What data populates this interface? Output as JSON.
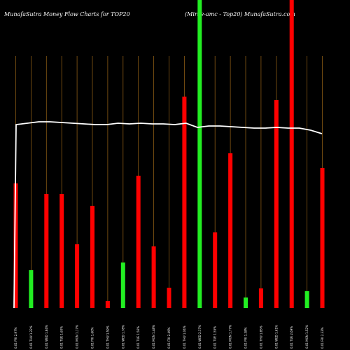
{
  "chart_data": {
    "type": "bar",
    "title_left": "MunafaSutra  Money Flow  Charts for TOP20",
    "title_right": "(Mirae-amc -   Top20) MunafaSutra.com",
    "colors": {
      "background": "#000000",
      "up": "#22ee22",
      "down": "#ff0000",
      "guide": "#8a5a14",
      "line": "#ffffff"
    },
    "ylim": [
      0,
      440
    ],
    "categories": [
      "0.01 FRI 2.97%",
      "0.01 THU 1.22%",
      "0.01 WED 1.84%",
      "0.01 TUE 1.60%",
      "0.01 MON 1.17%",
      "0.01 FRI 1.60%",
      "0.01 THU 1.59%",
      "0.01 WED 1.78%",
      "0.01 TUE 1.56%",
      "0.01 MON 1.48%",
      "0.01 FRI 2.49%",
      "0.01 THU 1.04%",
      "0.01 WED 2.37%",
      "0.01 TUE 1.55%",
      "0.01 MON 1.77%",
      "0.01 FRI 1.38%",
      "0.01 THU 1.85%",
      "0.01 WED 1.61%",
      "0.01 TUE 2.69%",
      "0.01 MON 1.52%",
      "0.01 FRI 2.33%"
    ],
    "values": [
      178,
      54,
      163,
      163,
      91,
      146,
      10,
      65,
      189,
      88,
      29,
      302,
      440,
      108,
      221,
      15,
      28,
      297,
      440,
      24,
      200
    ],
    "directions": [
      "down",
      "up",
      "down",
      "down",
      "down",
      "down",
      "down",
      "up",
      "down",
      "down",
      "down",
      "down",
      "up",
      "down",
      "down",
      "up",
      "down",
      "down",
      "down",
      "up",
      "down"
    ],
    "line": [
      262,
      264,
      266,
      266,
      265,
      264,
      263,
      262,
      262,
      264,
      263,
      264,
      263,
      263,
      262,
      264,
      258,
      260,
      260,
      259,
      258,
      257,
      257,
      258,
      257,
      257,
      254,
      249
    ]
  }
}
